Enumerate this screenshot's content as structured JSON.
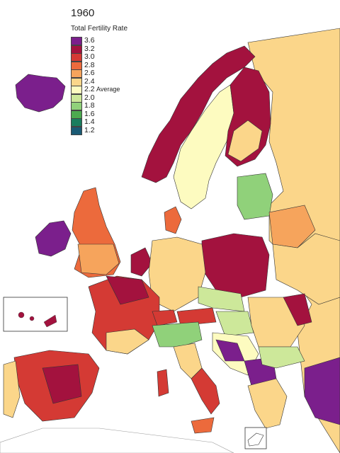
{
  "map": {
    "title": "1960",
    "subtitle": "Total Fertility Rate",
    "average_label": "Average",
    "legend": [
      {
        "label": "3.6",
        "color": "#7b1f8c"
      },
      {
        "label": "3.2",
        "color": "#a3123e"
      },
      {
        "label": "3.0",
        "color": "#d43a34"
      },
      {
        "label": "2.8",
        "color": "#ec6a3c"
      },
      {
        "label": "2.6",
        "color": "#f6a45c"
      },
      {
        "label": "2.4",
        "color": "#fbd68a"
      },
      {
        "label": "2.2",
        "color": "#fdfbc0"
      },
      {
        "label": "2.0",
        "color": "#cde89a"
      },
      {
        "label": "1.8",
        "color": "#90d17a"
      },
      {
        "label": "1.6",
        "color": "#4caa4e"
      },
      {
        "label": "1.4",
        "color": "#1a7d5e"
      },
      {
        "label": "1.2",
        "color": "#1a5a74"
      }
    ],
    "icons": [
      "country-outline-icon",
      "inset-box-icon"
    ]
  }
}
